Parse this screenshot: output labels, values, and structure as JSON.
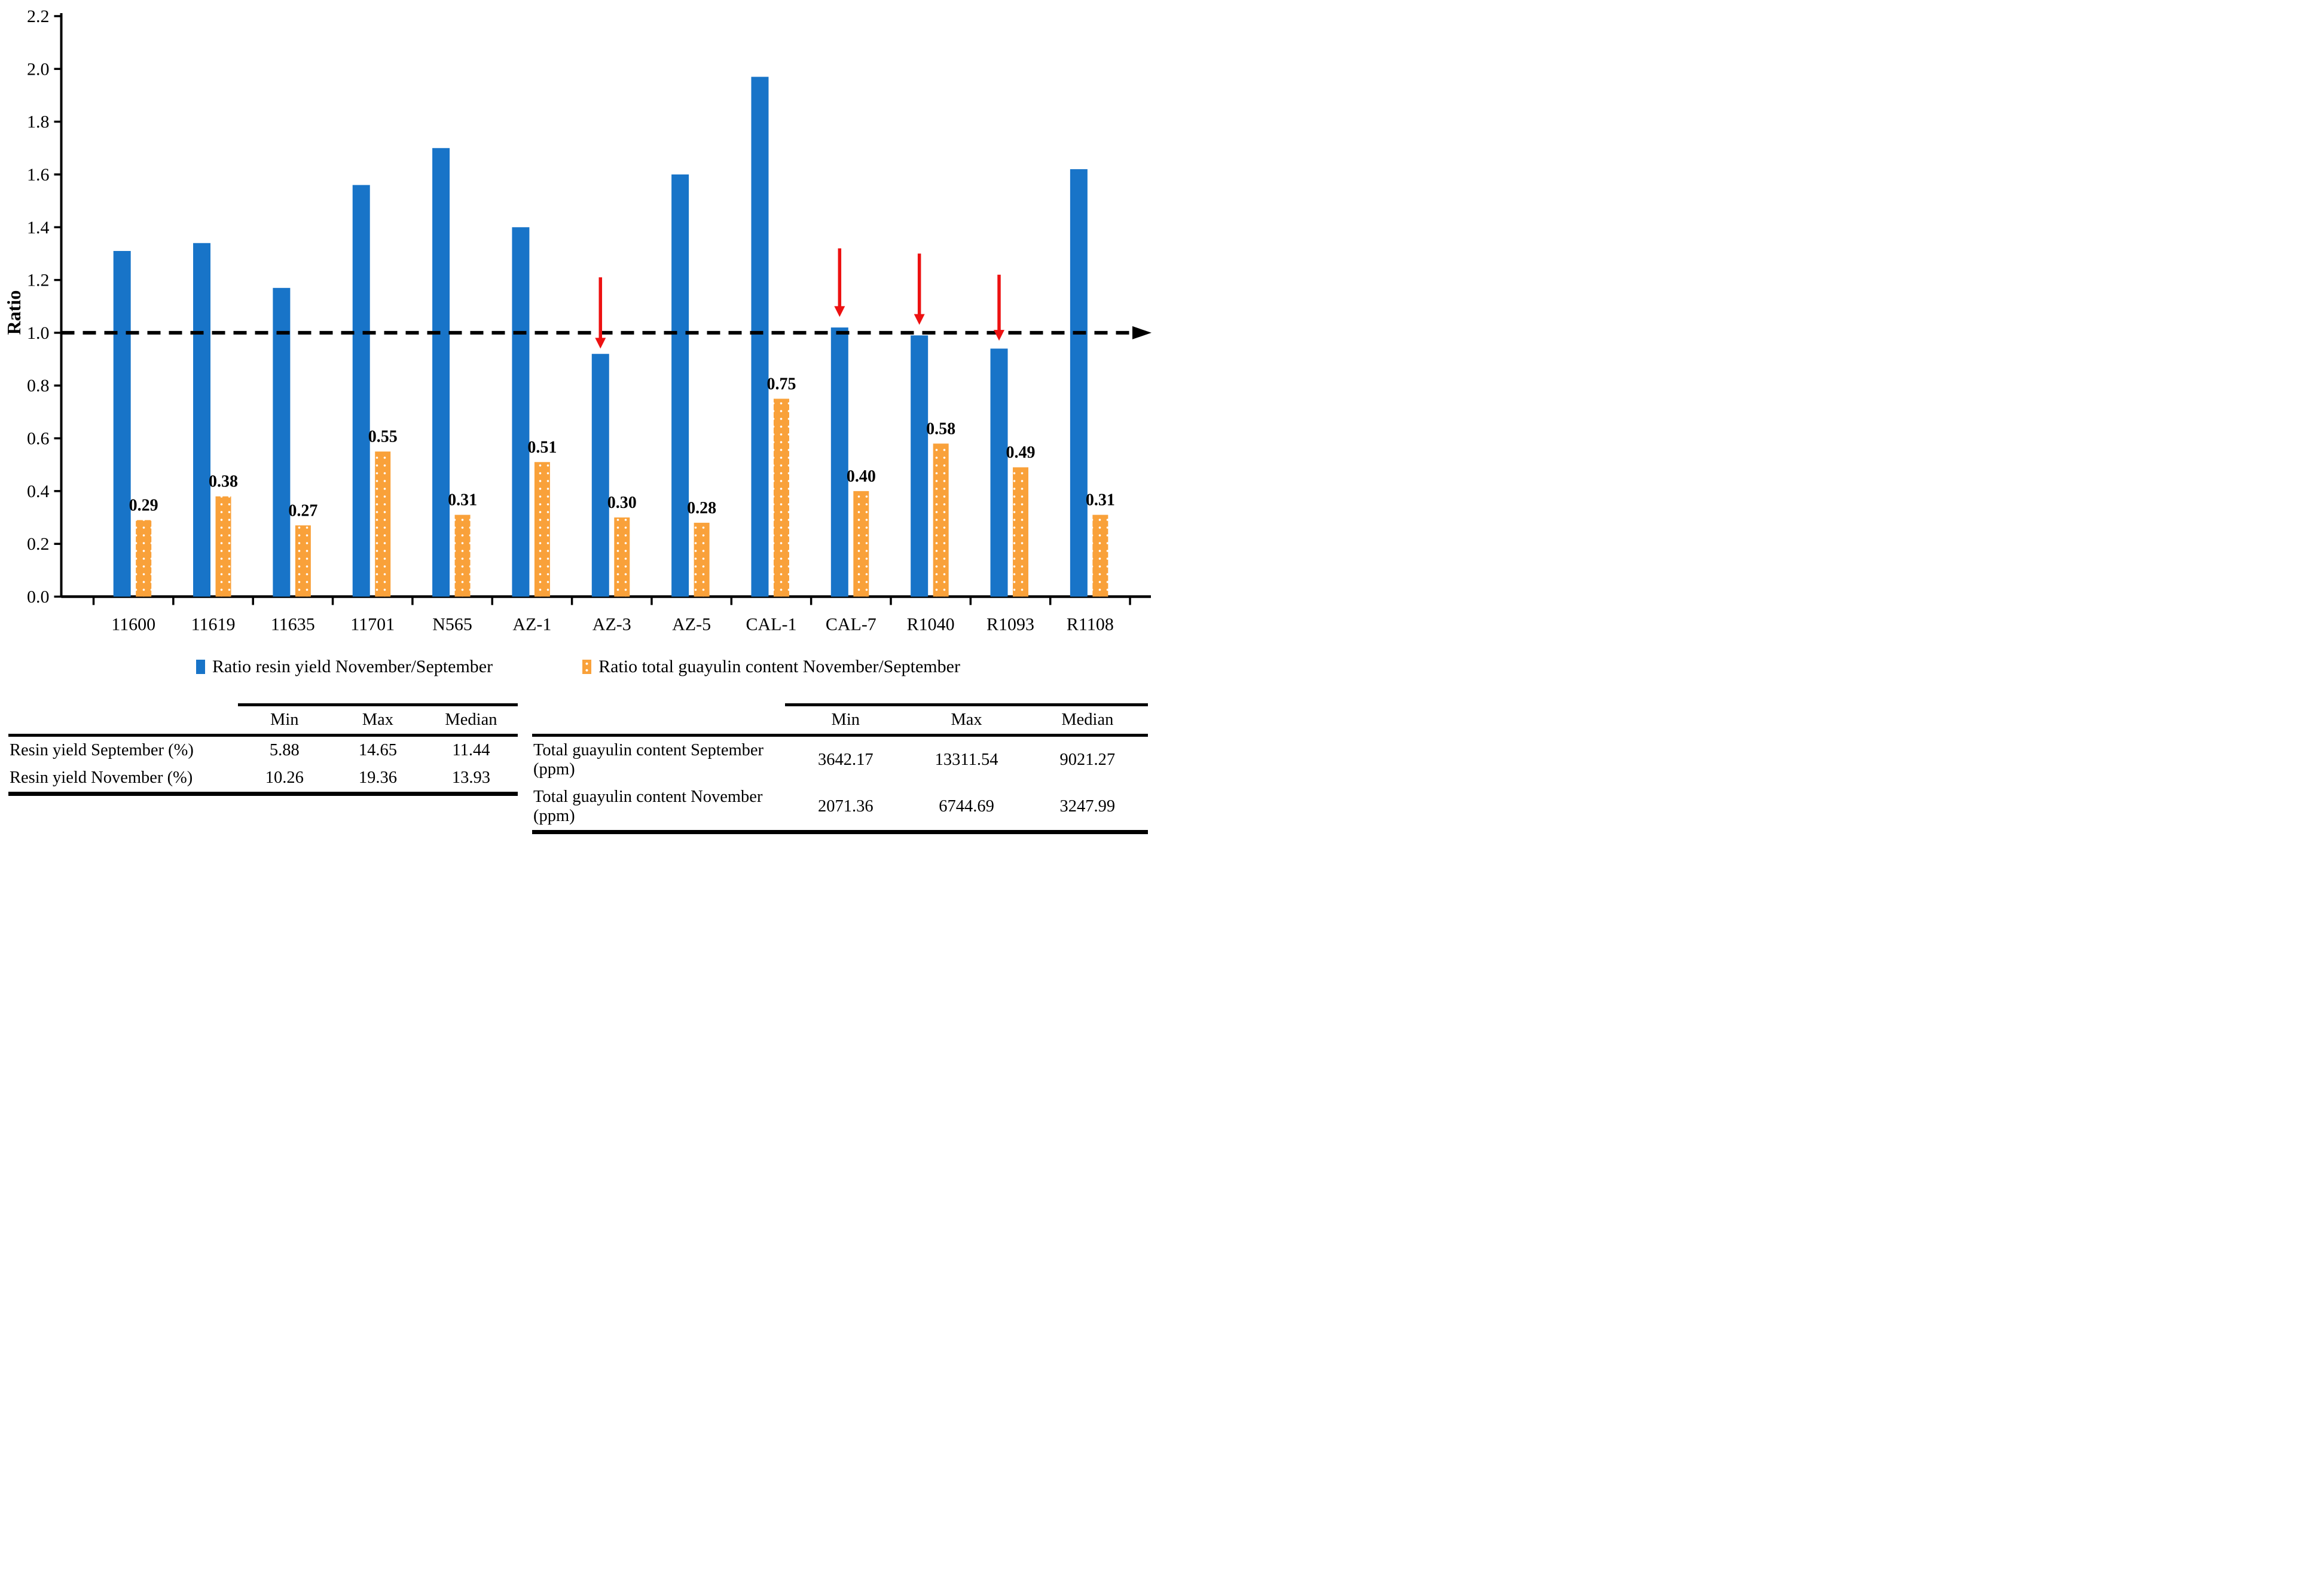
{
  "chart_data": {
    "type": "bar",
    "title": "",
    "xlabel": "",
    "ylabel": "Ratio",
    "ylim": [
      0.0,
      2.2
    ],
    "ytick_step": 0.2,
    "grid": false,
    "legend_position": "bottom",
    "categories": [
      "11600",
      "11619",
      "11635",
      "11701",
      "N565",
      "AZ-1",
      "AZ-3",
      "AZ-5",
      "CAL-1",
      "CAL-7",
      "R1040",
      "R1093",
      "R1108"
    ],
    "series": [
      {
        "name": "Ratio resin yield November/September",
        "color": "#1874C8",
        "pattern": "solid",
        "values": [
          1.31,
          1.34,
          1.17,
          1.56,
          1.7,
          1.4,
          0.92,
          1.6,
          1.97,
          1.02,
          0.99,
          0.94,
          1.62
        ]
      },
      {
        "name": "Ratio total guayulin content November/September",
        "color": "#F9A13A",
        "pattern": "white-dots",
        "values": [
          0.29,
          0.38,
          0.27,
          0.55,
          0.31,
          0.51,
          0.3,
          0.28,
          0.75,
          0.4,
          0.58,
          0.49,
          0.31
        ],
        "data_labels": [
          "0.29",
          "0.38",
          "0.27",
          "0.55",
          "0.31",
          "0.51",
          "0.30",
          "0.28",
          "0.75",
          "0.40",
          "0.58",
          "0.49",
          "0.31"
        ]
      }
    ],
    "reference_line": {
      "value": 1.0,
      "style": "dashed",
      "color": "#000000",
      "arrow_right": true
    },
    "annotations": {
      "red_arrow_color": "#ED1111",
      "red_arrows": [
        {
          "category": "AZ-3",
          "from": 1.21,
          "to": 0.94
        },
        {
          "category": "CAL-7",
          "from": 1.32,
          "to": 1.06
        },
        {
          "category": "R1040",
          "from": 1.3,
          "to": 1.03
        },
        {
          "category": "R1093",
          "from": 1.22,
          "to": 0.97
        }
      ]
    }
  },
  "legend": {
    "items": [
      {
        "label": "Ratio resin yield November/September",
        "color": "#1874C8"
      },
      {
        "label": "Ratio total guayulin content November/September",
        "color": "#F9A13A"
      }
    ]
  },
  "tables": {
    "left": {
      "columns": [
        "Min",
        "Max",
        "Median"
      ],
      "rows": [
        {
          "label": "Resin yield September (%)",
          "values": [
            "5.88",
            "14.65",
            "11.44"
          ]
        },
        {
          "label": "Resin yield November (%)",
          "values": [
            "10.26",
            "19.36",
            "13.93"
          ]
        }
      ]
    },
    "right": {
      "columns": [
        "Min",
        "Max",
        "Median"
      ],
      "rows": [
        {
          "label": "Total guayulin content September (ppm)",
          "values": [
            "3642.17",
            "13311.54",
            "9021.27"
          ]
        },
        {
          "label": "Total guayulin content November (ppm)",
          "values": [
            "2071.36",
            "6744.69",
            "3247.99"
          ]
        }
      ]
    }
  }
}
